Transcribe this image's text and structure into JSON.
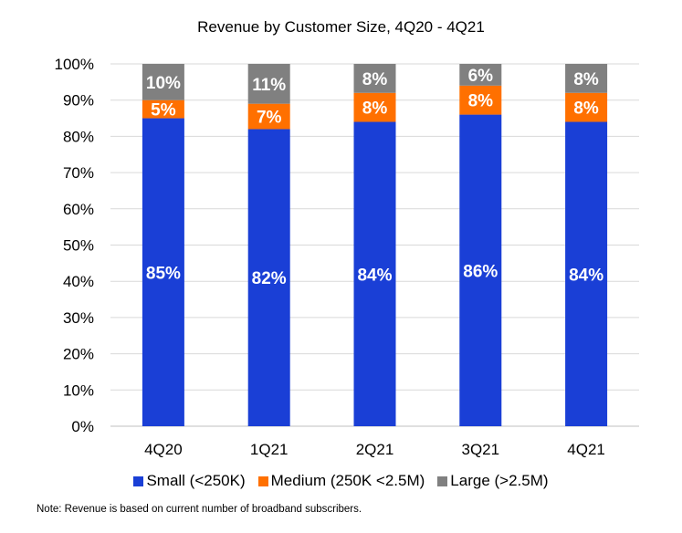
{
  "chart_data": {
    "type": "bar",
    "stacked": true,
    "title": "Revenue by Customer Size, 4Q20 - 4Q21",
    "xlabel": "",
    "ylabel": "",
    "ylim": [
      0,
      100
    ],
    "yticks": [
      "0%",
      "10%",
      "20%",
      "30%",
      "40%",
      "50%",
      "60%",
      "70%",
      "80%",
      "90%",
      "100%"
    ],
    "categories": [
      "4Q20",
      "1Q21",
      "2Q21",
      "3Q21",
      "4Q21"
    ],
    "series": [
      {
        "name": "Small (<250K)",
        "color": "#1a3fd6",
        "values": [
          85,
          82,
          84,
          86,
          84
        ],
        "labels": [
          "85%",
          "82%",
          "84%",
          "86%",
          "84%"
        ]
      },
      {
        "name": "Medium (250K <2.5M)",
        "color": "#ff7000",
        "values": [
          5,
          7,
          8,
          8,
          8
        ],
        "labels": [
          "5%",
          "7%",
          "8%",
          "8%",
          "8%"
        ]
      },
      {
        "name": "Large (>2.5M)",
        "color": "#808080",
        "values": [
          10,
          11,
          8,
          6,
          8
        ],
        "labels": [
          "10%",
          "11%",
          "8%",
          "6%",
          "8%"
        ]
      }
    ],
    "grid": true,
    "legend_position": "bottom"
  },
  "footnote": "Note: Revenue is based on current number of broadband subscribers."
}
